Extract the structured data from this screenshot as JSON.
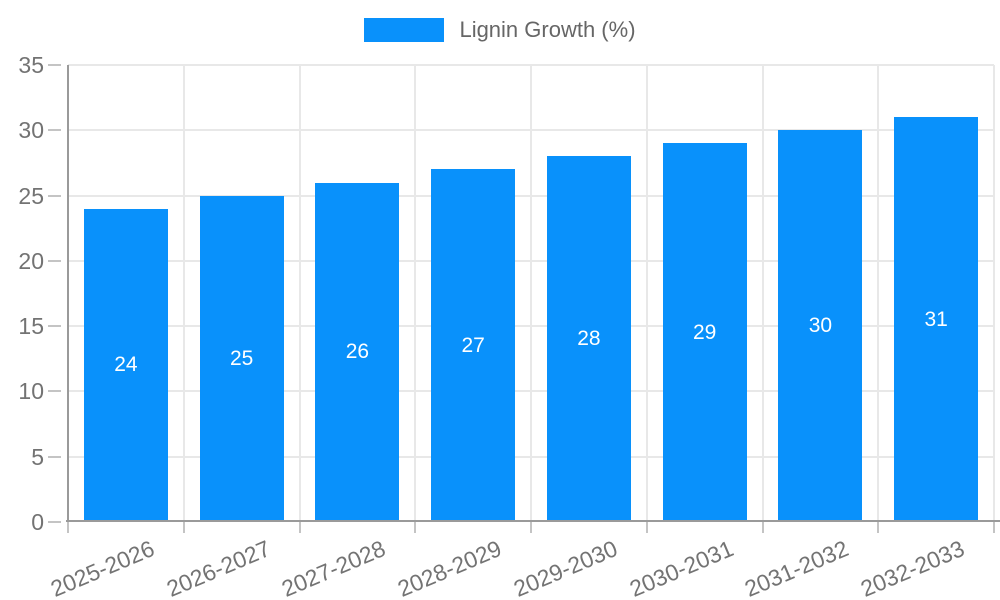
{
  "chart_data": {
    "type": "bar",
    "categories": [
      "2025-2026",
      "2026-2027",
      "2027-2028",
      "2028-2029",
      "2029-2030",
      "2030-2031",
      "2031-2032",
      "2032-2033"
    ],
    "series": [
      {
        "name": "Lignin Growth (%)",
        "color": "#0991fb",
        "values": [
          24,
          25,
          26,
          27,
          28,
          29,
          30,
          31
        ]
      }
    ],
    "title": "",
    "xlabel": "",
    "ylabel": "",
    "ylim": [
      0,
      35
    ],
    "yticks": [
      0,
      5,
      10,
      15,
      20,
      25,
      30,
      35
    ],
    "grid": true,
    "legend_position": "top",
    "bar_value_labels": [
      "24",
      "25",
      "26",
      "27",
      "28",
      "29",
      "30",
      "31"
    ]
  },
  "colors": {
    "bar": "#0991fb",
    "grid": "#e8e8e8",
    "axis": "#9a9a9a",
    "tick": "#c4c4c4",
    "tick_label": "#737373",
    "legend_text": "#666666",
    "bar_label": "#ffffff",
    "background": "#ffffff"
  }
}
